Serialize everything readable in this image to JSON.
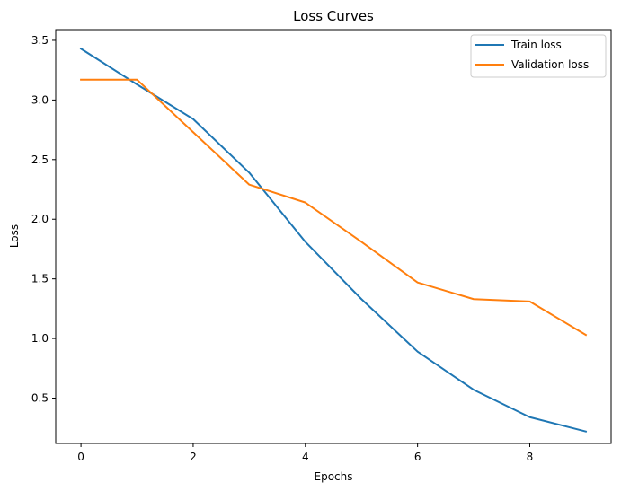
{
  "chart_data": {
    "type": "line",
    "title": "Loss Curves",
    "xlabel": "Epochs",
    "ylabel": "Loss",
    "x": [
      0,
      1,
      2,
      3,
      4,
      5,
      6,
      7,
      8,
      9
    ],
    "series": [
      {
        "name": "Train loss",
        "color": "#1f77b4",
        "values": [
          3.43,
          3.13,
          2.84,
          2.39,
          1.81,
          1.33,
          0.89,
          0.57,
          0.34,
          0.22
        ]
      },
      {
        "name": "Validation loss",
        "color": "#ff7f0e",
        "values": [
          3.17,
          3.17,
          2.73,
          2.29,
          2.14,
          1.81,
          1.47,
          1.33,
          1.31,
          1.03
        ]
      }
    ],
    "xlim": [
      -0.45,
      9.45
    ],
    "ylim": [
      0.12,
      3.59
    ],
    "xticks": [
      0,
      2,
      4,
      6,
      8
    ],
    "yticks": [
      0.5,
      1.0,
      1.5,
      2.0,
      2.5,
      3.0,
      3.5
    ],
    "ytick_labels": [
      "0.5",
      "1.0",
      "1.5",
      "2.0",
      "2.5",
      "3.0",
      "3.5"
    ],
    "grid": false,
    "legend": "top-right"
  }
}
